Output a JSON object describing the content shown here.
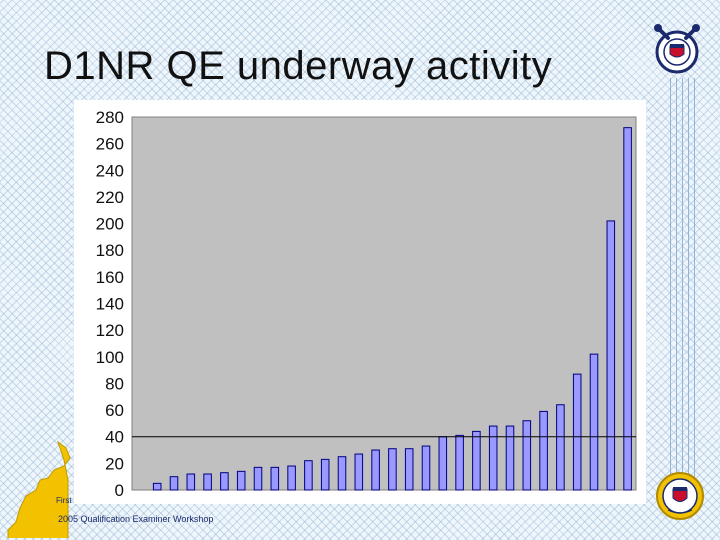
{
  "slide": {
    "title": "D1NR QE underway activity",
    "footer": "2005 Qualification Examiner Workshop",
    "district_label": "First"
  },
  "colors": {
    "plot_background": "#c0c0c0",
    "bar_fill": "#9999ff",
    "bar_stroke": "#000080",
    "reference_line": "#000000",
    "text": "#111111",
    "footer_text": "#1a2a6c"
  },
  "chart_data": {
    "type": "bar",
    "title": "",
    "xlabel": "",
    "ylabel": "",
    "ylim": [
      0,
      280
    ],
    "yticks": [
      0,
      20,
      40,
      60,
      80,
      100,
      120,
      140,
      160,
      180,
      200,
      220,
      240,
      260,
      280
    ],
    "grid": false,
    "legend": "none",
    "reference_line": 40,
    "values": [
      0,
      5,
      10,
      12,
      12,
      13,
      14,
      17,
      17,
      18,
      22,
      23,
      25,
      27,
      30,
      31,
      31,
      33,
      40,
      41,
      44,
      48,
      48,
      52,
      59,
      64,
      87,
      102,
      202,
      272
    ]
  }
}
